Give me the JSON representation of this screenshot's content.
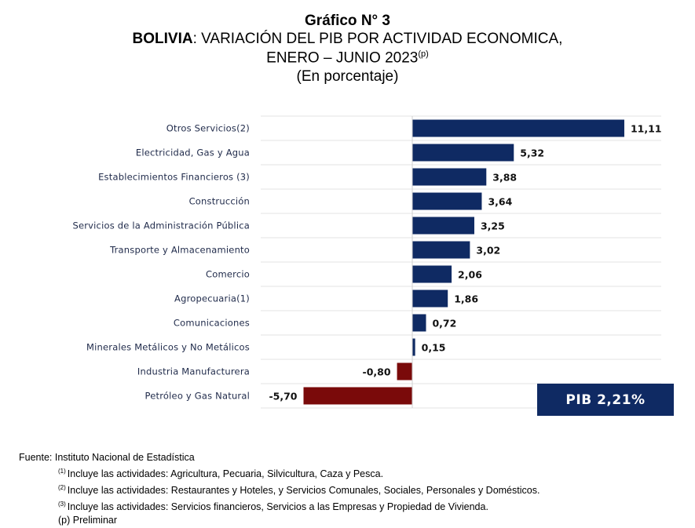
{
  "header": {
    "title": "Gráfico N° 3",
    "subtitle_country": "BOLIVIA",
    "subtitle_rest": ": VARIACIÓN DEL PIB POR ACTIVIDAD ECONOMICA,",
    "period": "ENERO – JUNIO 2023",
    "period_mark": "(p)",
    "unit": "(En porcentaje)"
  },
  "colors": {
    "positive_bar": "#0f2a63",
    "negative_bar": "#7a0a0a",
    "pib_box": "#0f2a63"
  },
  "pib_box": {
    "label": "PIB 2,21%"
  },
  "chart_data": {
    "type": "bar",
    "orientation": "horizontal",
    "title": "Gráfico N° 3",
    "categories": [
      "Otros Servicios(2)",
      "Electricidad, Gas y Agua",
      "Establecimientos Financieros (3)",
      "Construcción",
      "Servicios de la Administración Pública",
      "Transporte y Almacenamiento",
      "Comercio",
      "Agropecuaria(1)",
      "Comunicaciones",
      "Minerales Metálicos y No Metálicos",
      "Industria Manufacturera",
      "Petróleo y Gas Natural"
    ],
    "values": [
      11.11,
      5.32,
      3.88,
      3.64,
      3.25,
      3.02,
      2.06,
      1.86,
      0.72,
      0.15,
      -0.8,
      -5.7
    ],
    "value_labels": [
      "11,11",
      "5,32",
      "3,88",
      "3,64",
      "3,25",
      "3,02",
      "2,06",
      "1,86",
      "0,72",
      "0,15",
      "-0,80",
      "-5,70"
    ],
    "xlim": [
      -5.7,
      11.11
    ],
    "grid": "horizontal row separators",
    "legend": "none"
  },
  "notes": {
    "source": "Fuente: Instituto Nacional de Estadística",
    "n1_mark": "(1)",
    "n1": "Incluye las actividades: Agricultura, Pecuaria, Silvicultura, Caza y Pesca.",
    "n2_mark": "(2)",
    "n2": "Incluye las actividades: Restaurantes y Hoteles, y Servicios Comunales, Sociales, Personales y Domésticos.",
    "n3_mark": "(3)",
    "n3": "Incluye las actividades: Servicios financieros, Servicios a las Empresas y Propiedad de Vivienda.",
    "prelim": "(p) Preliminar"
  }
}
